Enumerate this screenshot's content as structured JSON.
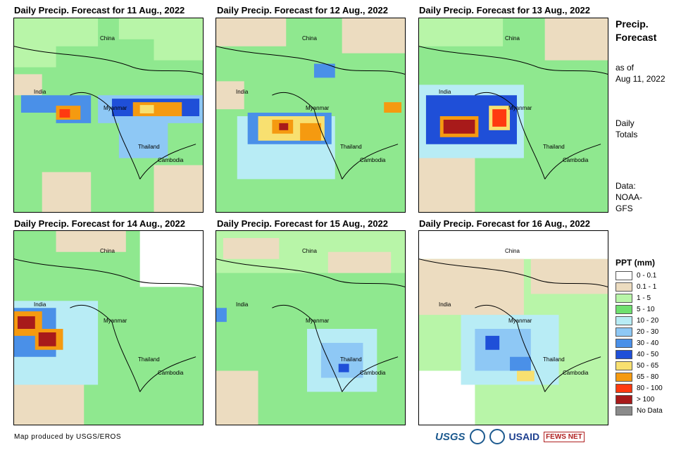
{
  "panels": [
    {
      "title": "Daily Precip. Forecast for 11 Aug., 2022"
    },
    {
      "title": "Daily Precip. Forecast for 12 Aug., 2022"
    },
    {
      "title": "Daily Precip. Forecast for 13 Aug., 2022"
    },
    {
      "title": "Daily Precip. Forecast for 14 Aug., 2022"
    },
    {
      "title": "Daily Precip. Forecast for 15 Aug., 2022"
    },
    {
      "title": "Daily Precip. Forecast for 16 Aug., 2022"
    }
  ],
  "countries": {
    "china": "China",
    "india": "India",
    "myanmar": "Myanmar",
    "thailand": "Thailand",
    "cambodia": "Cambodia"
  },
  "side": {
    "title_line1": "Precip.",
    "title_line2": "Forecast",
    "asof_line1": "as of",
    "asof_line2": "Aug 11, 2022",
    "daily_line1": "Daily",
    "daily_line2": "Totals",
    "data_line1": "Data:",
    "data_line2": "NOAA-",
    "data_line3": "GFS"
  },
  "legend": {
    "title": "PPT (mm)",
    "items": [
      {
        "label": "0 - 0.1",
        "color": "#ffffff"
      },
      {
        "label": "0.1 - 1",
        "color": "#ecdcc0"
      },
      {
        "label": "1 - 5",
        "color": "#b8f5a8"
      },
      {
        "label": "5 - 10",
        "color": "#6fe06f"
      },
      {
        "label": "10 - 20",
        "color": "#b8ecf5"
      },
      {
        "label": "20 - 30",
        "color": "#8ec8f5"
      },
      {
        "label": "30 - 40",
        "color": "#4a90e8"
      },
      {
        "label": "40 - 50",
        "color": "#1f4fd8"
      },
      {
        "label": "50 - 65",
        "color": "#f8e070"
      },
      {
        "label": "65 - 80",
        "color": "#f59a10"
      },
      {
        "label": "80 - 100",
        "color": "#ff3a10"
      },
      {
        "label": "> 100",
        "color": "#a81a1a"
      },
      {
        "label": "No Data",
        "color": "#8a8a8a"
      }
    ]
  },
  "footer": "Map produced by USGS/EROS",
  "logos": {
    "usgs": "USGS",
    "usaid": "USAID",
    "fews": "FEWS NET"
  }
}
